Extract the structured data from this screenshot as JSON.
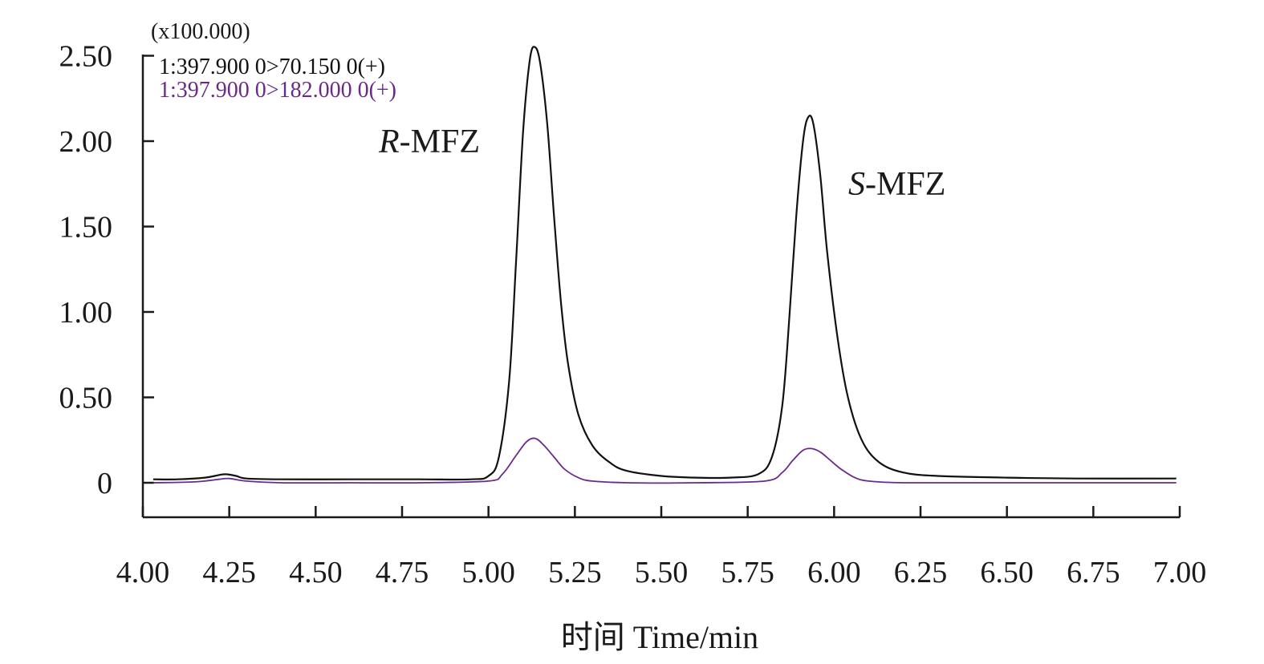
{
  "chart_data": {
    "type": "line",
    "xlabel": "时间 Time/min",
    "y_multiplier": "(x100.000)",
    "xlim": [
      4.0,
      7.0
    ],
    "ylim": [
      -0.2,
      2.5
    ],
    "x_ticks": [
      "4.00",
      "4.25",
      "4.50",
      "4.75",
      "5.00",
      "5.25",
      "5.50",
      "5.75",
      "6.00",
      "6.25",
      "6.50",
      "6.75",
      "7.00"
    ],
    "y_ticks": [
      "0",
      "0.50",
      "1.00",
      "1.50",
      "2.00",
      "2.50"
    ],
    "grid": false,
    "legend_position": "top-left",
    "series": [
      {
        "name": "1:397.900 0>70.150 0(+)",
        "color": "#111111",
        "x": [
          4.03,
          4.1,
          4.18,
          4.22,
          4.24,
          4.27,
          4.3,
          4.4,
          4.6,
          4.8,
          4.95,
          5.0,
          5.03,
          5.06,
          5.08,
          5.1,
          5.12,
          5.135,
          5.15,
          5.17,
          5.19,
          5.21,
          5.23,
          5.26,
          5.3,
          5.35,
          5.4,
          5.5,
          5.6,
          5.7,
          5.78,
          5.82,
          5.85,
          5.87,
          5.89,
          5.91,
          5.925,
          5.94,
          5.96,
          5.98,
          6.01,
          6.04,
          6.08,
          6.13,
          6.2,
          6.3,
          6.5,
          6.7,
          6.99
        ],
        "y": [
          0.02,
          0.02,
          0.03,
          0.045,
          0.05,
          0.04,
          0.025,
          0.02,
          0.02,
          0.02,
          0.02,
          0.04,
          0.15,
          0.6,
          1.3,
          2.05,
          2.48,
          2.55,
          2.45,
          2.1,
          1.55,
          1.05,
          0.7,
          0.4,
          0.22,
          0.12,
          0.07,
          0.04,
          0.03,
          0.03,
          0.05,
          0.15,
          0.45,
          0.95,
          1.55,
          2.0,
          2.14,
          2.1,
          1.8,
          1.35,
          0.85,
          0.5,
          0.25,
          0.12,
          0.06,
          0.04,
          0.03,
          0.025,
          0.025
        ]
      },
      {
        "name": "1:397.900 0>182.000 0(+)",
        "color": "#6a2a8a",
        "x": [
          4.03,
          4.15,
          4.22,
          4.25,
          4.3,
          4.4,
          4.6,
          4.8,
          5.0,
          5.04,
          5.08,
          5.11,
          5.135,
          5.16,
          5.19,
          5.22,
          5.26,
          5.3,
          5.4,
          5.6,
          5.8,
          5.85,
          5.88,
          5.91,
          5.935,
          5.96,
          5.99,
          6.02,
          6.06,
          6.1,
          6.2,
          6.5,
          6.99
        ],
        "y": [
          0.0,
          0.005,
          0.02,
          0.025,
          0.01,
          0.0,
          0.0,
          0.0,
          0.01,
          0.05,
          0.16,
          0.24,
          0.26,
          0.22,
          0.15,
          0.08,
          0.03,
          0.01,
          0.0,
          0.0,
          0.01,
          0.06,
          0.13,
          0.19,
          0.2,
          0.18,
          0.13,
          0.08,
          0.03,
          0.01,
          0.0,
          0.0,
          0.0
        ]
      }
    ],
    "annotations": [
      {
        "italic": "R",
        "text": "-MFZ"
      },
      {
        "italic": "S",
        "text": "-MFZ"
      }
    ]
  }
}
